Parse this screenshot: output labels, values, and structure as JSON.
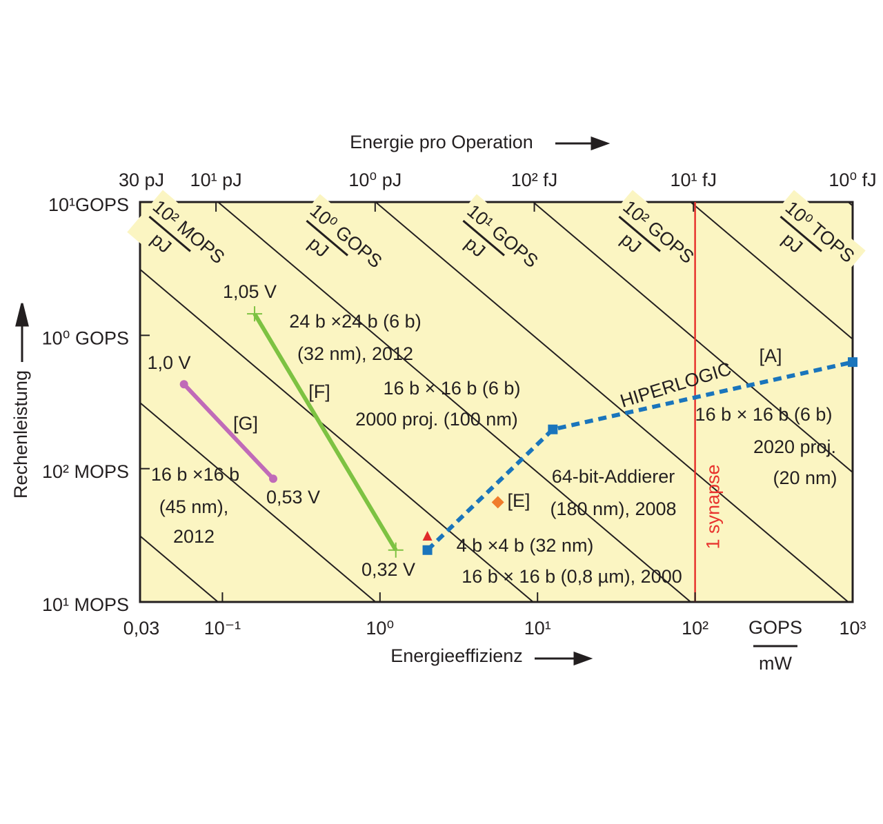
{
  "chart_data": {
    "type": "line",
    "xscale": "log",
    "yscale": "log",
    "x_label": "Energieeffizienz",
    "x_unit_numerator": "GOPS",
    "x_unit_denominator": "mW",
    "x2_label": "Energie pro Operation",
    "y_label": "Rechenleistung",
    "xlim": [
      0.03,
      1000
    ],
    "xticks": [
      {
        "value": 0.03,
        "label": "0,03"
      },
      {
        "value": 0.1,
        "label": "10⁻¹"
      },
      {
        "value": 1,
        "label": "10⁰"
      },
      {
        "value": 10,
        "label": "10¹"
      },
      {
        "value": 100,
        "label": "10²"
      },
      {
        "value": 1000,
        "label": "10³"
      }
    ],
    "x2lim": [
      30,
      0.001
    ],
    "x2ticks": [
      {
        "value": 30,
        "label": "30 pJ"
      },
      {
        "value": 10,
        "label": "10¹ pJ"
      },
      {
        "value": 1,
        "label": "10⁰ pJ"
      },
      {
        "value": 0.1,
        "label": "10² fJ"
      },
      {
        "value": 0.01,
        "label": "10¹ fJ"
      },
      {
        "value": 0.001,
        "label": "10⁰ fJ"
      }
    ],
    "ylim": [
      0.01,
      10
    ],
    "yticks": [
      {
        "value": 10,
        "label": "10¹GOPS"
      },
      {
        "value": 1,
        "label": "10⁰ GOPS"
      },
      {
        "value": 0.1,
        "label": "10² MOPS"
      },
      {
        "value": 0.01,
        "label": "10¹ MOPS"
      }
    ],
    "background": "#fbf5c2",
    "series": [
      {
        "name": "[F]",
        "color": "#7dc242",
        "style": "solid",
        "marker": "plus",
        "x": [
          0.16,
          1.26
        ],
        "values": [
          1.45,
          0.0245
        ]
      },
      {
        "name": "[G]",
        "color": "#c06ab8",
        "style": "solid",
        "marker": "circle",
        "x": [
          0.057,
          0.21
        ],
        "values": [
          0.43,
          0.084
        ]
      },
      {
        "name": "HIPERLOGIC",
        "color": "#1a75bc",
        "style": "dashed",
        "marker": "square",
        "x": [
          2.0,
          12.5,
          1000
        ],
        "values": [
          0.0245,
          0.197,
          0.63
        ]
      },
      {
        "color": "#e02b2b",
        "style": "none",
        "marker": "triangle",
        "x": [
          2.0
        ],
        "values": [
          0.031
        ]
      },
      {
        "name": "[E]",
        "color": "#f07c2c",
        "style": "none",
        "marker": "diamond",
        "x": [
          5.6
        ],
        "values": [
          0.056
        ]
      }
    ],
    "reference_line": {
      "x": 100,
      "label": "1 synapse",
      "color": "#e8332e"
    },
    "diagonal_labels": [
      {
        "numerator": "10² MOPS",
        "denominator": "pJ"
      },
      {
        "numerator": "10⁰ GOPS",
        "denominator": "pJ"
      },
      {
        "numerator": "10¹ GOPS",
        "denominator": "pJ"
      },
      {
        "numerator": "10² GOPS",
        "denominator": "pJ"
      },
      {
        "numerator": "10⁰ TOPS",
        "denominator": "pJ"
      }
    ],
    "annotations": [
      "1,05 V",
      "24 b ×24 b (6 b)",
      "(32 nm), 2012",
      "16 b × 16 b (6 b)",
      "2000 proj. (100 nm)",
      "1,0 V",
      "16 b ×16 b",
      "(45 nm),",
      "2012",
      "0,53 V",
      "0,32 V",
      "64-bit-Addierer",
      "(180 nm), 2008",
      "4 b ×4 b (32 nm)",
      "16 b × 16 b (0,8 µm), 2000",
      "[A]",
      "16 b × 16 b (6 b)",
      "2020 proj.",
      "(20 nm)"
    ]
  }
}
